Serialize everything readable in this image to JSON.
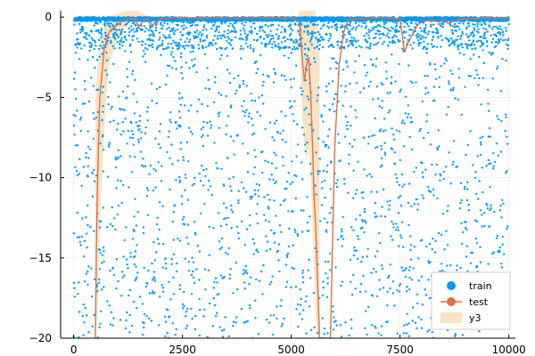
{
  "chart_data": {
    "type": "scatter",
    "xlim": [
      -300,
      10150
    ],
    "ylim": [
      -20,
      0.4
    ],
    "xticks": [
      0,
      2500,
      5000,
      7500,
      10000
    ],
    "xtick_labels": [
      "0",
      "2500",
      "5000",
      "7500",
      "10000"
    ],
    "yticks": [
      0,
      -5,
      -10,
      -15,
      -20
    ],
    "ytick_labels": [
      "0",
      "−5",
      "−10",
      "−15",
      "−20"
    ],
    "grid": true,
    "legend_position": "bottom-right",
    "series": [
      {
        "name": "train",
        "kind": "scatter",
        "color": "#009AFA",
        "n_points": 5000,
        "x_range": [
          0,
          10000
        ],
        "distribution_note": "dense band near 0, points spread down to -20"
      },
      {
        "name": "test",
        "kind": "line",
        "color": "#E26F46",
        "x": [
          500,
          520,
          550,
          600,
          650,
          700,
          800,
          900,
          1000,
          1100,
          1200,
          1300,
          1400,
          1500,
          1600,
          1700,
          1800,
          1900,
          2000,
          2500,
          3000,
          3500,
          4000,
          4500,
          5000,
          5100,
          5150,
          5200,
          5250,
          5300,
          5350,
          5400,
          5450,
          5500,
          5520,
          5560,
          5600,
          5650,
          5700,
          5750,
          5800,
          5850,
          5900,
          5950,
          6000,
          6100,
          6200,
          6300,
          6500,
          7000,
          7500,
          7600,
          7700,
          7800,
          7900,
          8000,
          8200,
          8400,
          8500,
          8600,
          8800,
          9000,
          9500,
          10000
        ],
        "y": [
          -20,
          -14.5,
          -10,
          -5,
          -3.5,
          -2,
          -1,
          -0.7,
          -0.5,
          -0.3,
          -0.2,
          -0.15,
          -0.1,
          -0.6,
          -0.2,
          -0.1,
          -0.5,
          -0.3,
          -0.1,
          -0.05,
          -0.05,
          -0.05,
          -0.05,
          -0.05,
          -0.05,
          -0.1,
          -0.2,
          -0.5,
          -2.5,
          -4,
          -3,
          -2.5,
          -5,
          -9,
          -11,
          -13,
          -16,
          -20,
          -20,
          -20,
          -20,
          -20,
          -20,
          -14,
          -8,
          -3,
          -1,
          -0.2,
          -0.1,
          -0.05,
          -0.1,
          -2.2,
          -1.5,
          -1,
          -0.5,
          -0.3,
          -0.2,
          -0.3,
          -0.15,
          -0.4,
          -0.2,
          -0.1,
          -0.05,
          -0.05
        ]
      },
      {
        "name": "y3",
        "kind": "band",
        "color": "#E3A63B",
        "opacity": 0.3,
        "x": [
          500,
          550,
          600,
          700,
          800,
          1000,
          1200,
          1300,
          1400,
          1500,
          1600,
          1700,
          5150,
          5200,
          5250,
          5300,
          5350,
          5400,
          5450,
          5500,
          5550,
          5600,
          5650
        ],
        "lower": [
          -20,
          -18,
          -13,
          -7,
          -3,
          -1.5,
          -0.6,
          -0.3,
          -0.2,
          -0.3,
          -0.2,
          -0.1,
          -0.1,
          -2,
          -6,
          -8,
          -9,
          -8,
          -10,
          -14,
          -18,
          -20,
          -20
        ],
        "upper": [
          -5,
          -3,
          -1.5,
          -0.5,
          0,
          0.2,
          0.4,
          0.4,
          0.4,
          0.4,
          0.2,
          0.1,
          0.1,
          0.4,
          0.4,
          0.4,
          0.4,
          0.4,
          0.4,
          0.4,
          0.4,
          -1,
          -2
        ]
      }
    ]
  }
}
